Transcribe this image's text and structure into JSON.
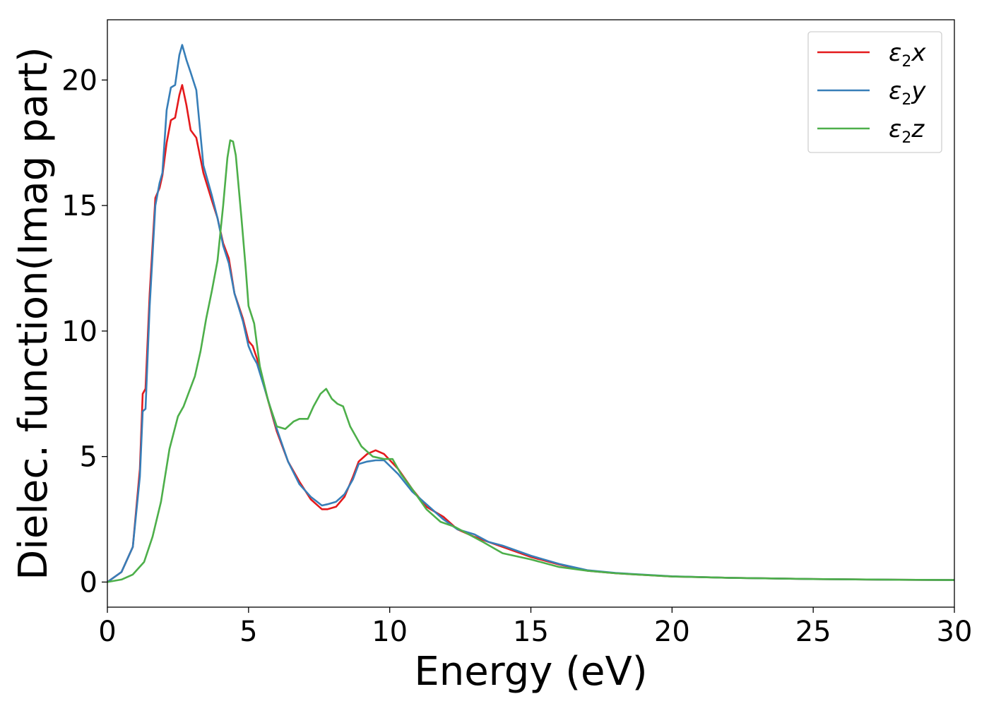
{
  "chart_data": {
    "type": "line",
    "xlabel": "Energy (eV)",
    "ylabel": "Dielec. function(Imag part)",
    "xlim": [
      0,
      30
    ],
    "ylim": [
      -1,
      22.4
    ],
    "xticks": [
      0,
      5,
      10,
      15,
      20,
      25,
      30
    ],
    "yticks": [
      0,
      5,
      10,
      15,
      20
    ],
    "grid": false,
    "legend_position": "top-right",
    "series": [
      {
        "name": "ε₂x",
        "legend_base": "ε",
        "legend_sub": "2",
        "legend_var": "x",
        "color": "#e41a1c",
        "points": [
          [
            0,
            0
          ],
          [
            0.5,
            0.4
          ],
          [
            0.9,
            1.4
          ],
          [
            1.15,
            4.5
          ],
          [
            1.25,
            7.5
          ],
          [
            1.35,
            7.7
          ],
          [
            1.5,
            11.5
          ],
          [
            1.7,
            15.3
          ],
          [
            1.85,
            15.7
          ],
          [
            1.95,
            16.2
          ],
          [
            2.1,
            17.5
          ],
          [
            2.25,
            18.4
          ],
          [
            2.4,
            18.5
          ],
          [
            2.55,
            19.4
          ],
          [
            2.65,
            19.8
          ],
          [
            2.8,
            19.0
          ],
          [
            2.95,
            18.0
          ],
          [
            3.15,
            17.7
          ],
          [
            3.4,
            16.3
          ],
          [
            3.7,
            15.2
          ],
          [
            3.9,
            14.5
          ],
          [
            4.1,
            13.5
          ],
          [
            4.3,
            12.9
          ],
          [
            4.5,
            11.5
          ],
          [
            4.8,
            10.5
          ],
          [
            5.0,
            9.6
          ],
          [
            5.15,
            9.4
          ],
          [
            5.3,
            8.9
          ],
          [
            5.6,
            7.6
          ],
          [
            6.0,
            6.0
          ],
          [
            6.4,
            4.8
          ],
          [
            6.8,
            4.0
          ],
          [
            7.2,
            3.3
          ],
          [
            7.6,
            2.9
          ],
          [
            7.8,
            2.9
          ],
          [
            8.1,
            3.0
          ],
          [
            8.4,
            3.4
          ],
          [
            8.7,
            4.2
          ],
          [
            8.9,
            4.8
          ],
          [
            9.2,
            5.1
          ],
          [
            9.5,
            5.25
          ],
          [
            9.8,
            5.1
          ],
          [
            10.3,
            4.5
          ],
          [
            10.8,
            3.7
          ],
          [
            11.3,
            3.0
          ],
          [
            11.9,
            2.6
          ],
          [
            12.4,
            2.1
          ],
          [
            13,
            1.8
          ],
          [
            13.5,
            1.6
          ],
          [
            14,
            1.4
          ],
          [
            15,
            1.0
          ],
          [
            16,
            0.7
          ],
          [
            17,
            0.45
          ],
          [
            18,
            0.35
          ],
          [
            20,
            0.22
          ],
          [
            22,
            0.17
          ],
          [
            25,
            0.12
          ],
          [
            28,
            0.09
          ],
          [
            30,
            0.08
          ]
        ]
      },
      {
        "name": "ε₂y",
        "legend_base": "ε",
        "legend_sub": "2",
        "legend_var": "y",
        "color": "#377eb8",
        "points": [
          [
            0,
            0
          ],
          [
            0.5,
            0.4
          ],
          [
            0.9,
            1.4
          ],
          [
            1.15,
            4.2
          ],
          [
            1.25,
            6.8
          ],
          [
            1.35,
            6.9
          ],
          [
            1.5,
            11.0
          ],
          [
            1.7,
            15.0
          ],
          [
            1.85,
            15.9
          ],
          [
            1.95,
            16.3
          ],
          [
            2.1,
            18.8
          ],
          [
            2.25,
            19.7
          ],
          [
            2.4,
            19.8
          ],
          [
            2.55,
            21.0
          ],
          [
            2.65,
            21.4
          ],
          [
            2.8,
            20.8
          ],
          [
            2.95,
            20.3
          ],
          [
            3.15,
            19.6
          ],
          [
            3.4,
            16.6
          ],
          [
            3.7,
            15.4
          ],
          [
            3.9,
            14.5
          ],
          [
            4.1,
            13.4
          ],
          [
            4.3,
            12.7
          ],
          [
            4.5,
            11.5
          ],
          [
            4.8,
            10.4
          ],
          [
            5.0,
            9.4
          ],
          [
            5.15,
            9.0
          ],
          [
            5.3,
            8.7
          ],
          [
            5.6,
            7.6
          ],
          [
            6.0,
            6.1
          ],
          [
            6.4,
            4.8
          ],
          [
            6.8,
            3.9
          ],
          [
            7.2,
            3.4
          ],
          [
            7.6,
            3.05
          ],
          [
            7.8,
            3.1
          ],
          [
            8.1,
            3.2
          ],
          [
            8.4,
            3.5
          ],
          [
            8.7,
            4.1
          ],
          [
            8.9,
            4.7
          ],
          [
            9.2,
            4.8
          ],
          [
            9.5,
            4.85
          ],
          [
            9.8,
            4.85
          ],
          [
            10.3,
            4.3
          ],
          [
            10.8,
            3.6
          ],
          [
            11.3,
            3.1
          ],
          [
            11.9,
            2.5
          ],
          [
            12.4,
            2.1
          ],
          [
            13,
            1.9
          ],
          [
            13.5,
            1.6
          ],
          [
            14,
            1.45
          ],
          [
            15,
            1.05
          ],
          [
            16,
            0.72
          ],
          [
            17,
            0.47
          ],
          [
            18,
            0.36
          ],
          [
            20,
            0.23
          ],
          [
            22,
            0.17
          ],
          [
            25,
            0.12
          ],
          [
            28,
            0.09
          ],
          [
            30,
            0.08
          ]
        ]
      },
      {
        "name": "ε₂z",
        "legend_base": "ε",
        "legend_sub": "2",
        "legend_var": "z",
        "color": "#4daf4a",
        "points": [
          [
            0,
            0
          ],
          [
            0.5,
            0.1
          ],
          [
            0.9,
            0.3
          ],
          [
            1.3,
            0.8
          ],
          [
            1.6,
            1.8
          ],
          [
            1.9,
            3.2
          ],
          [
            2.2,
            5.3
          ],
          [
            2.5,
            6.6
          ],
          [
            2.7,
            7.0
          ],
          [
            2.9,
            7.6
          ],
          [
            3.1,
            8.2
          ],
          [
            3.3,
            9.2
          ],
          [
            3.5,
            10.5
          ],
          [
            3.7,
            11.6
          ],
          [
            3.9,
            12.8
          ],
          [
            4.1,
            15.0
          ],
          [
            4.25,
            16.9
          ],
          [
            4.35,
            17.6
          ],
          [
            4.45,
            17.55
          ],
          [
            4.55,
            17.0
          ],
          [
            4.75,
            14.5
          ],
          [
            4.9,
            12.5
          ],
          [
            5.0,
            11.0
          ],
          [
            5.2,
            10.3
          ],
          [
            5.4,
            8.6
          ],
          [
            5.7,
            7.2
          ],
          [
            6.0,
            6.2
          ],
          [
            6.3,
            6.1
          ],
          [
            6.6,
            6.4
          ],
          [
            6.8,
            6.5
          ],
          [
            7.1,
            6.5
          ],
          [
            7.3,
            7.0
          ],
          [
            7.55,
            7.5
          ],
          [
            7.75,
            7.7
          ],
          [
            7.95,
            7.3
          ],
          [
            8.15,
            7.1
          ],
          [
            8.35,
            7.0
          ],
          [
            8.6,
            6.2
          ],
          [
            9.0,
            5.4
          ],
          [
            9.4,
            5.0
          ],
          [
            9.8,
            4.9
          ],
          [
            10.1,
            4.9
          ],
          [
            10.4,
            4.3
          ],
          [
            10.8,
            3.7
          ],
          [
            11.3,
            2.9
          ],
          [
            11.8,
            2.4
          ],
          [
            12.3,
            2.2
          ],
          [
            12.8,
            1.9
          ],
          [
            13.3,
            1.6
          ],
          [
            14,
            1.15
          ],
          [
            15,
            0.9
          ],
          [
            16,
            0.6
          ],
          [
            17,
            0.45
          ],
          [
            18,
            0.35
          ],
          [
            20,
            0.22
          ],
          [
            22,
            0.17
          ],
          [
            25,
            0.12
          ],
          [
            28,
            0.09
          ],
          [
            30,
            0.08
          ]
        ]
      }
    ]
  }
}
